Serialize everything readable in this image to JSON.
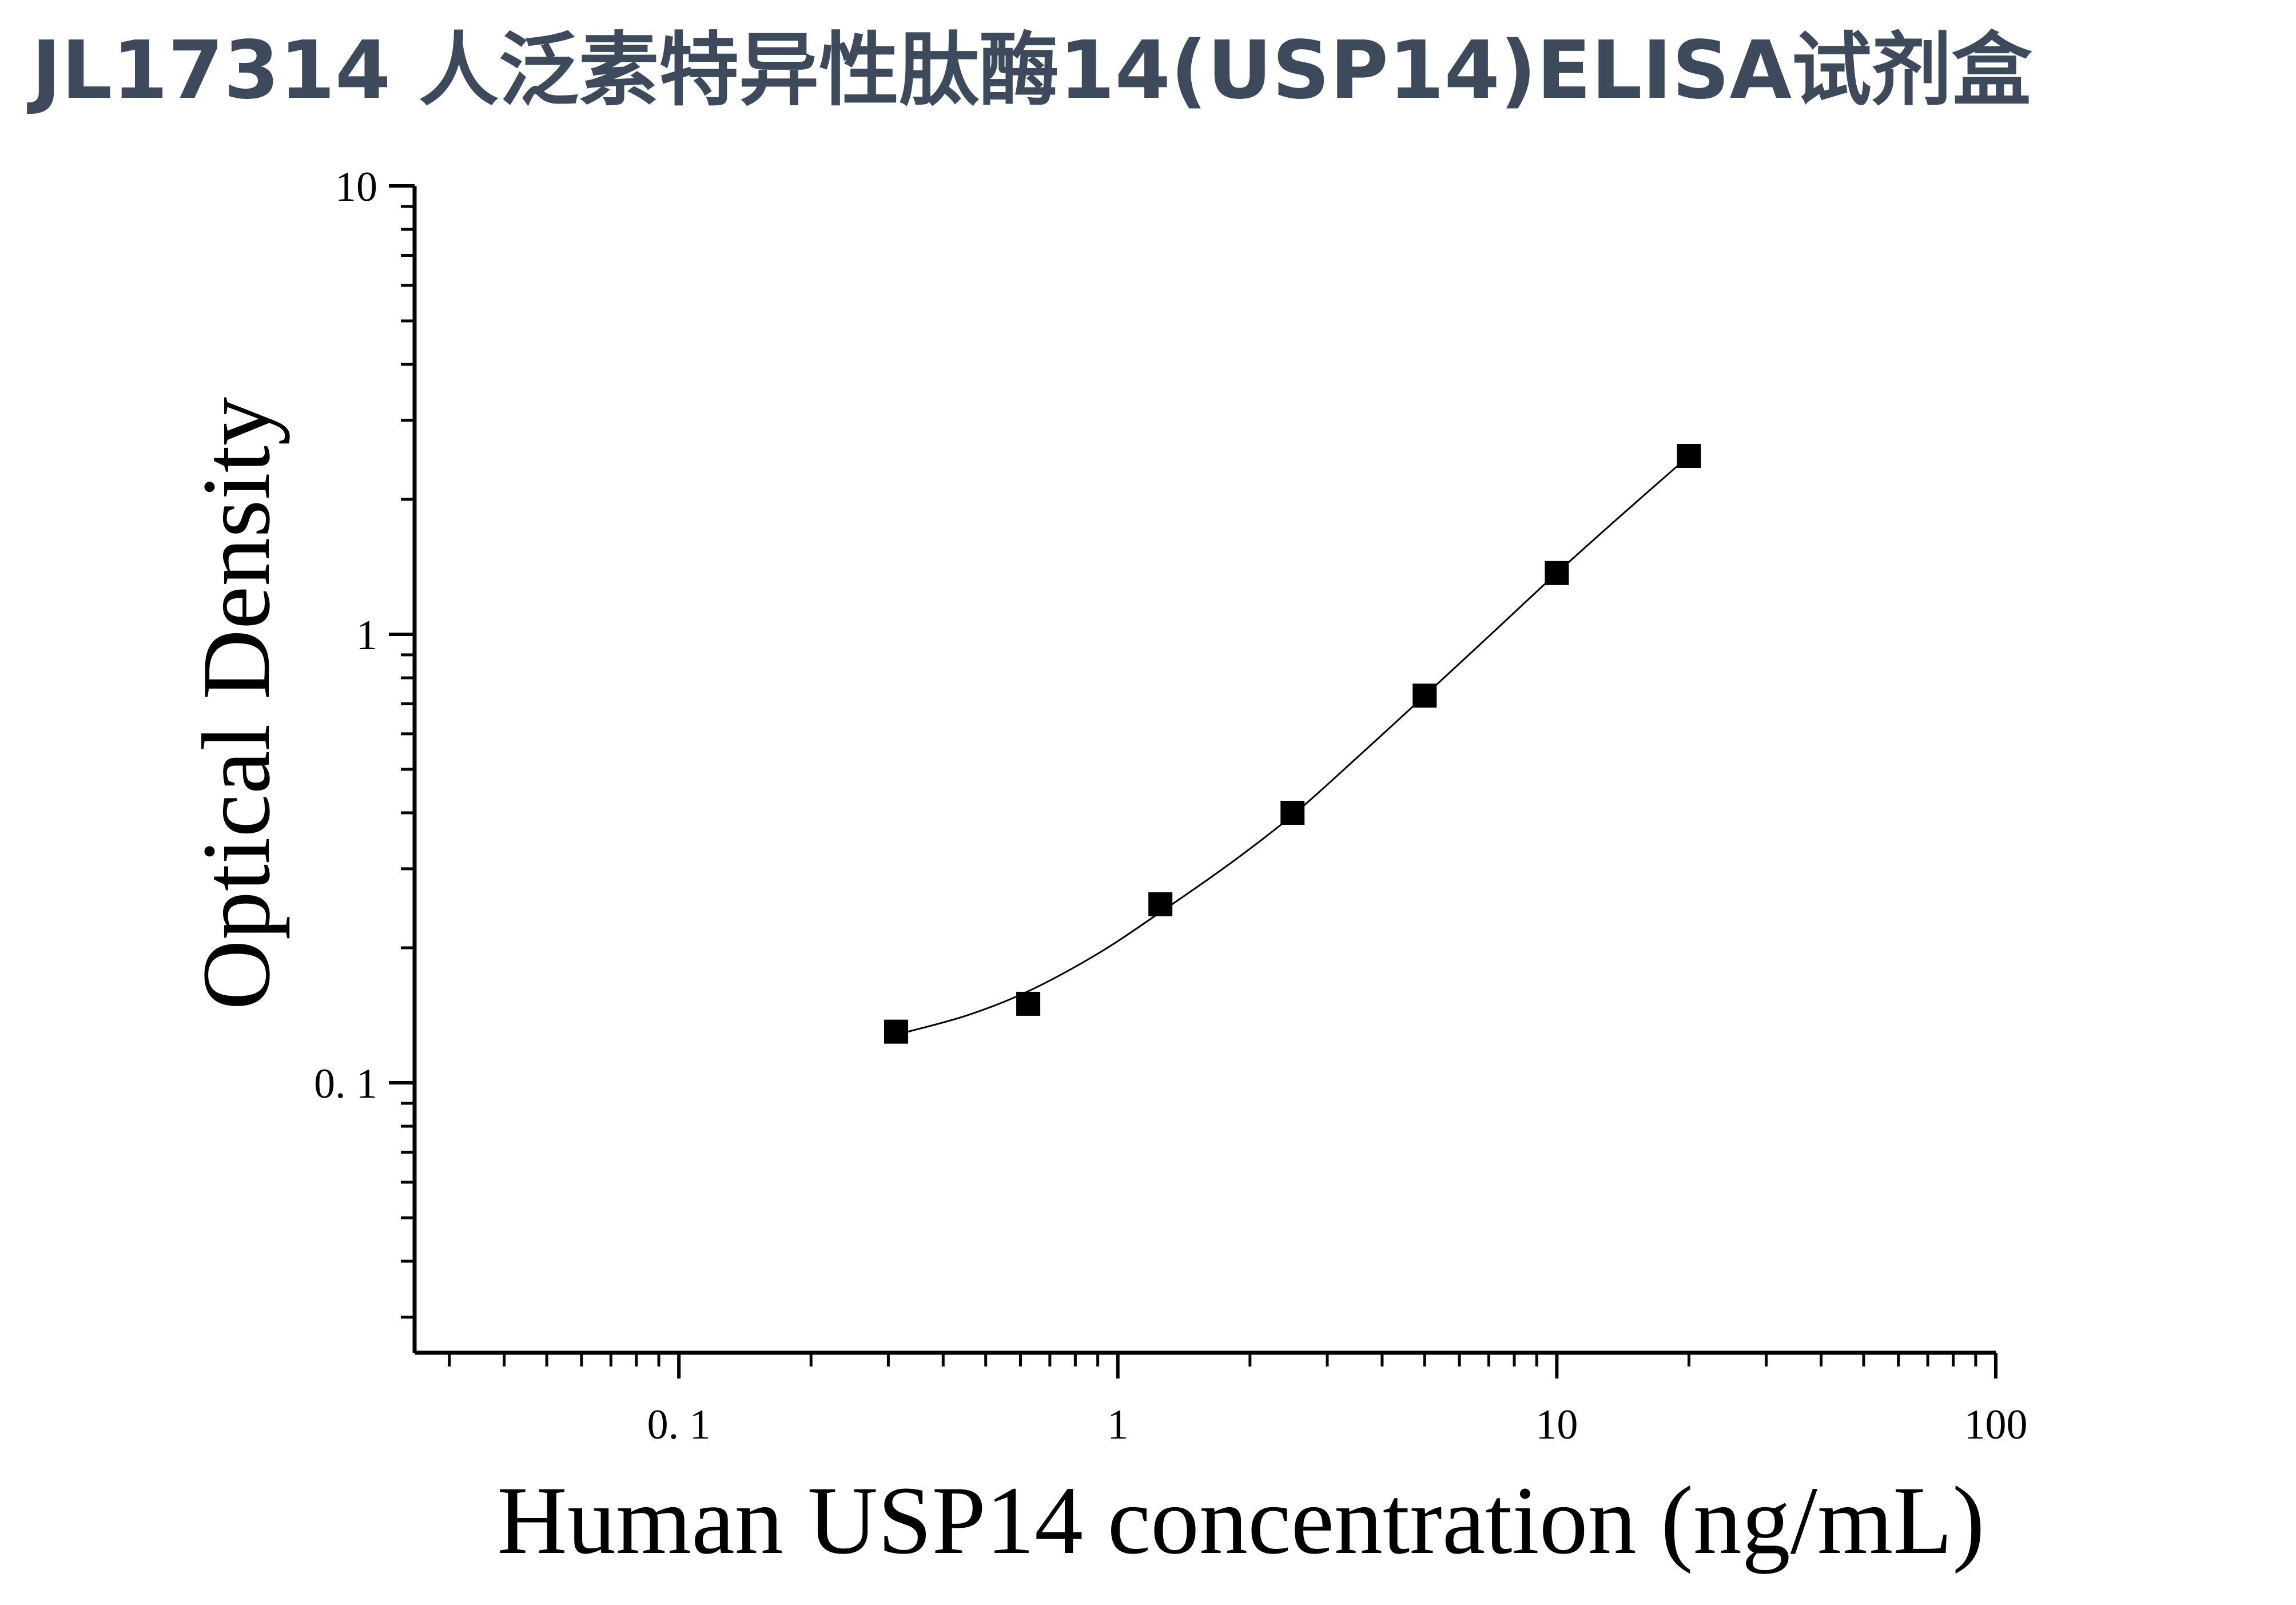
{
  "page": {
    "title": "JL17314 人泛素特异性肽酶14(USP14)ELISA试剂盒"
  },
  "chart_data": {
    "type": "scatter",
    "title": "",
    "xlabel": "Human USP14 concentration (ng/mL)",
    "ylabel": "Optical Density",
    "x_scale": "log",
    "y_scale": "log",
    "xlim": [
      0.025,
      100
    ],
    "ylim": [
      0.025,
      10
    ],
    "x_ticks": [
      {
        "value": 0.1,
        "label": "0. 1"
      },
      {
        "value": 1,
        "label": "1"
      },
      {
        "value": 10,
        "label": "10"
      },
      {
        "value": 100,
        "label": "100"
      }
    ],
    "y_ticks": [
      {
        "value": 0.1,
        "label": "0. 1"
      },
      {
        "value": 1,
        "label": "1"
      },
      {
        "value": 10,
        "label": "10"
      }
    ],
    "grid": false,
    "legend": "none",
    "marker_color": "#000000",
    "series": [
      {
        "marker": "square",
        "x": [
          0.3125,
          0.625,
          1.25,
          2.5,
          5,
          10,
          20
        ],
        "y": [
          0.13,
          0.15,
          0.25,
          0.4,
          0.73,
          1.37,
          2.5
        ]
      }
    ],
    "fit_curve": {
      "x": [
        0.3125,
        0.45,
        0.625,
        0.9,
        1.25,
        1.8,
        2.5,
        3.5,
        5,
        7,
        10,
        14,
        20
      ],
      "y": [
        0.128,
        0.141,
        0.16,
        0.194,
        0.24,
        0.308,
        0.395,
        0.53,
        0.73,
        0.99,
        1.37,
        1.84,
        2.5
      ]
    }
  }
}
